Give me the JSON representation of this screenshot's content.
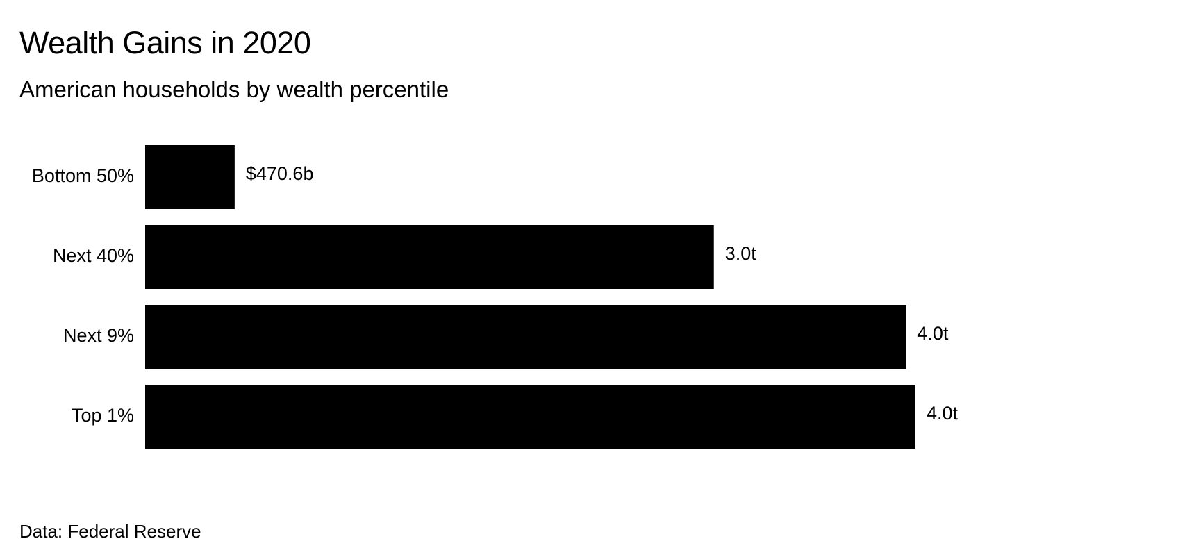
{
  "chart_data": {
    "type": "bar",
    "orientation": "horizontal",
    "title": "Wealth Gains in 2020",
    "subtitle": "American households by wealth percentile",
    "source": "Data: Federal Reserve",
    "categories": [
      "Bottom 50%",
      "Next 40%",
      "Next 9%",
      "Top 1%"
    ],
    "values": [
      470.6,
      2990,
      4000,
      4050
    ],
    "value_unit": "billion USD",
    "data_labels": [
      "$470.6b",
      "3.0t",
      "4.0t",
      "4.0t"
    ],
    "xlim": [
      0,
      4050
    ],
    "grid": false,
    "legend": "none",
    "bar_color": "#000000"
  }
}
